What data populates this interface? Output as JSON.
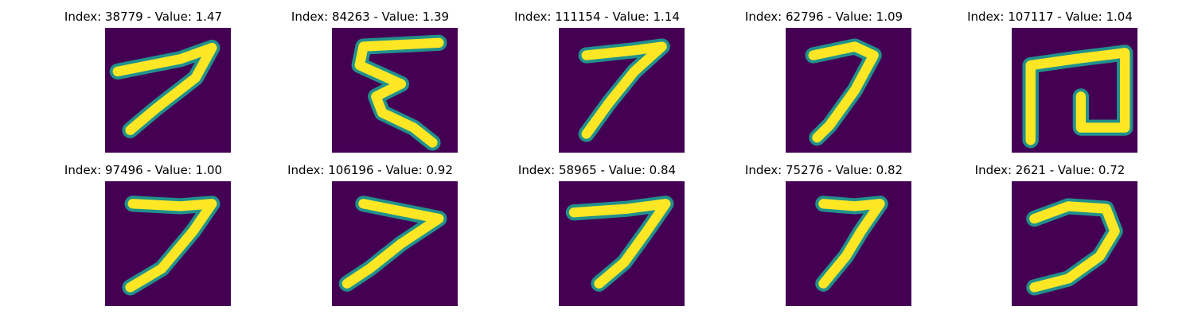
{
  "grid": {
    "colors": {
      "background": "#440154",
      "mid": "#21918c",
      "stroke": "#fde725"
    },
    "items": [
      {
        "title": "Index: 38779 - Value: 1.47",
        "index": 38779,
        "value": 1.47,
        "shape": [
          [
            0.1,
            0.35
          ],
          [
            0.6,
            0.25
          ],
          [
            0.85,
            0.16
          ],
          [
            0.72,
            0.4
          ],
          [
            0.4,
            0.65
          ],
          [
            0.2,
            0.82
          ]
        ]
      },
      {
        "title": "Index: 84263 - Value: 1.39",
        "index": 84263,
        "value": 1.39,
        "shape": [
          [
            0.85,
            0.12
          ],
          [
            0.25,
            0.15
          ],
          [
            0.22,
            0.3
          ],
          [
            0.55,
            0.45
          ],
          [
            0.35,
            0.55
          ],
          [
            0.4,
            0.68
          ],
          [
            0.65,
            0.8
          ],
          [
            0.8,
            0.92
          ]
        ]
      },
      {
        "title": "Index: 111154 - Value: 1.14",
        "index": 111154,
        "value": 1.14,
        "shape": [
          [
            0.22,
            0.22
          ],
          [
            0.6,
            0.18
          ],
          [
            0.82,
            0.15
          ],
          [
            0.6,
            0.35
          ],
          [
            0.4,
            0.6
          ],
          [
            0.22,
            0.85
          ]
        ]
      },
      {
        "title": "Index: 62796 - Value: 1.09",
        "index": 62796,
        "value": 1.09,
        "shape": [
          [
            0.22,
            0.22
          ],
          [
            0.55,
            0.15
          ],
          [
            0.7,
            0.22
          ],
          [
            0.55,
            0.5
          ],
          [
            0.35,
            0.78
          ],
          [
            0.25,
            0.88
          ]
        ]
      },
      {
        "title": "Index: 107117 - Value: 1.04",
        "index": 107117,
        "value": 1.04,
        "shape": [
          [
            0.15,
            0.9
          ],
          [
            0.15,
            0.3
          ],
          [
            0.5,
            0.25
          ],
          [
            0.9,
            0.2
          ],
          [
            0.9,
            0.8
          ],
          [
            0.55,
            0.8
          ],
          [
            0.55,
            0.55
          ]
        ]
      },
      {
        "title": "Index: 97496 - Value: 1.00",
        "index": 97496,
        "value": 1.0,
        "shape": [
          [
            0.22,
            0.18
          ],
          [
            0.6,
            0.2
          ],
          [
            0.85,
            0.18
          ],
          [
            0.7,
            0.4
          ],
          [
            0.45,
            0.7
          ],
          [
            0.2,
            0.85
          ]
        ]
      },
      {
        "title": "Index: 106196 - Value: 0.92",
        "index": 106196,
        "value": 0.92,
        "shape": [
          [
            0.25,
            0.18
          ],
          [
            0.6,
            0.25
          ],
          [
            0.85,
            0.3
          ],
          [
            0.55,
            0.5
          ],
          [
            0.3,
            0.7
          ],
          [
            0.12,
            0.82
          ]
        ]
      },
      {
        "title": "Index: 58965 - Value: 0.84",
        "index": 58965,
        "value": 0.84,
        "shape": [
          [
            0.12,
            0.25
          ],
          [
            0.55,
            0.22
          ],
          [
            0.85,
            0.18
          ],
          [
            0.7,
            0.4
          ],
          [
            0.52,
            0.65
          ],
          [
            0.32,
            0.82
          ]
        ]
      },
      {
        "title": "Index: 75276 - Value: 0.82",
        "index": 75276,
        "value": 0.82,
        "shape": [
          [
            0.3,
            0.18
          ],
          [
            0.55,
            0.2
          ],
          [
            0.75,
            0.18
          ],
          [
            0.6,
            0.4
          ],
          [
            0.48,
            0.6
          ],
          [
            0.3,
            0.82
          ]
        ]
      },
      {
        "title": "Index: 2621 - Value: 0.72",
        "index": 2621,
        "value": 0.72,
        "shape": [
          [
            0.18,
            0.3
          ],
          [
            0.45,
            0.2
          ],
          [
            0.75,
            0.22
          ],
          [
            0.82,
            0.4
          ],
          [
            0.7,
            0.6
          ],
          [
            0.45,
            0.78
          ],
          [
            0.18,
            0.85
          ]
        ]
      }
    ]
  }
}
